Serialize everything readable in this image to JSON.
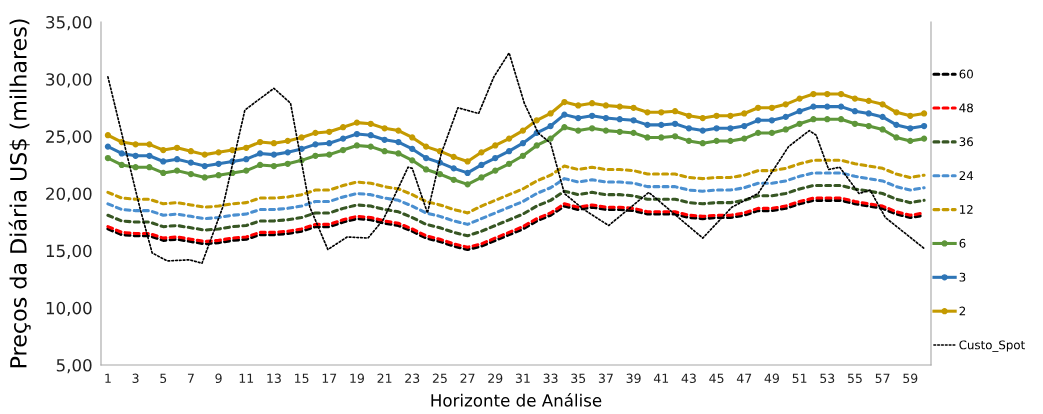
{
  "chart_data": {
    "type": "line",
    "xlabel": "Horizonte de Análise",
    "ylabel": "Preços da Diária US$ (milhares)",
    "x": [
      1,
      2,
      3,
      4,
      5,
      6,
      7,
      8,
      9,
      10,
      11,
      12,
      13,
      14,
      15,
      16,
      17,
      18,
      19,
      20,
      21,
      22,
      23,
      24,
      25,
      26,
      27,
      28,
      29,
      30,
      31,
      32,
      33,
      34,
      35,
      36,
      37,
      38,
      39,
      40,
      41,
      42,
      43,
      44,
      45,
      46,
      47,
      48,
      49,
      50,
      51,
      52,
      53,
      54,
      55,
      56,
      57,
      58,
      59,
      60
    ],
    "xlim": [
      0.5,
      60.5
    ],
    "xticks": [
      1,
      3,
      5,
      7,
      9,
      11,
      13,
      15,
      17,
      19,
      21,
      23,
      25,
      27,
      29,
      31,
      33,
      35,
      37,
      39,
      41,
      43,
      45,
      47,
      49,
      51,
      53,
      55,
      57,
      59
    ],
    "ylim": [
      5,
      35
    ],
    "yticks": [
      {
        "value": 5,
        "label": "5,00"
      },
      {
        "value": 10,
        "label": "10,00"
      },
      {
        "value": 15,
        "label": "15,00"
      },
      {
        "value": 20,
        "label": "20,00"
      },
      {
        "value": 25,
        "label": "25,00"
      },
      {
        "value": 30,
        "label": "30,00"
      },
      {
        "value": 35,
        "label": "35,00"
      }
    ],
    "grid": false,
    "legend": "right",
    "series": [
      {
        "name": "60",
        "color": "#000000",
        "line_style": "dashed",
        "marker": "none",
        "values": [
          16.9,
          16.4,
          16.3,
          16.3,
          15.9,
          16.0,
          15.8,
          15.6,
          15.7,
          15.9,
          16.0,
          16.4,
          16.4,
          16.5,
          16.7,
          17.1,
          17.1,
          17.5,
          17.8,
          17.7,
          17.4,
          17.2,
          16.7,
          16.1,
          15.8,
          15.4,
          15.1,
          15.4,
          15.9,
          16.4,
          16.9,
          17.6,
          18.1,
          18.9,
          18.6,
          18.8,
          18.6,
          18.6,
          18.5,
          18.2,
          18.2,
          18.2,
          17.9,
          17.8,
          17.9,
          17.9,
          18.1,
          18.5,
          18.5,
          18.7,
          19.1,
          19.4,
          19.4,
          19.4,
          19.1,
          18.9,
          18.7,
          18.2,
          17.9,
          18.1
        ]
      },
      {
        "name": "48",
        "color": "#ff0000",
        "line_style": "dashed",
        "marker": "none",
        "values": [
          17.1,
          16.6,
          16.5,
          16.5,
          16.1,
          16.2,
          16.0,
          15.8,
          15.9,
          16.1,
          16.2,
          16.6,
          16.6,
          16.7,
          16.9,
          17.3,
          17.3,
          17.7,
          18.0,
          17.9,
          17.6,
          17.4,
          16.9,
          16.3,
          16.0,
          15.6,
          15.3,
          15.6,
          16.1,
          16.6,
          17.1,
          17.8,
          18.3,
          19.1,
          18.8,
          19.0,
          18.8,
          18.8,
          18.7,
          18.4,
          18.4,
          18.4,
          18.1,
          18.0,
          18.1,
          18.1,
          18.3,
          18.7,
          18.7,
          18.9,
          19.3,
          19.6,
          19.6,
          19.6,
          19.3,
          19.1,
          18.9,
          18.4,
          18.1,
          18.3
        ]
      },
      {
        "name": "36",
        "color": "#375623",
        "line_style": "dashed",
        "marker": "none",
        "values": [
          18.1,
          17.6,
          17.5,
          17.5,
          17.1,
          17.2,
          17.0,
          16.8,
          16.9,
          17.1,
          17.2,
          17.6,
          17.6,
          17.7,
          17.9,
          18.3,
          18.3,
          18.7,
          19.0,
          18.9,
          18.6,
          18.4,
          17.9,
          17.3,
          17.0,
          16.6,
          16.3,
          16.7,
          17.2,
          17.7,
          18.2,
          18.9,
          19.4,
          20.2,
          19.9,
          20.1,
          19.9,
          19.9,
          19.8,
          19.5,
          19.5,
          19.5,
          19.2,
          19.1,
          19.2,
          19.2,
          19.4,
          19.8,
          19.8,
          20.0,
          20.4,
          20.7,
          20.7,
          20.7,
          20.4,
          20.2,
          20.0,
          19.5,
          19.2,
          19.4
        ]
      },
      {
        "name": "24",
        "color": "#4a8fd0",
        "line_style": "dashed",
        "marker": "none",
        "values": [
          19.1,
          18.6,
          18.5,
          18.5,
          18.1,
          18.2,
          18.0,
          17.8,
          17.9,
          18.1,
          18.2,
          18.6,
          18.6,
          18.7,
          18.9,
          19.3,
          19.3,
          19.7,
          20.0,
          19.9,
          19.6,
          19.4,
          18.9,
          18.3,
          18.0,
          17.6,
          17.3,
          17.8,
          18.3,
          18.8,
          19.3,
          20.0,
          20.5,
          21.3,
          21.0,
          21.2,
          21.0,
          21.0,
          20.9,
          20.6,
          20.6,
          20.6,
          20.3,
          20.2,
          20.3,
          20.3,
          20.5,
          20.9,
          20.9,
          21.1,
          21.5,
          21.8,
          21.8,
          21.8,
          21.5,
          21.3,
          21.1,
          20.6,
          20.3,
          20.5
        ]
      },
      {
        "name": "12",
        "color": "#c49a00",
        "line_style": "dashed",
        "marker": "none",
        "values": [
          20.1,
          19.6,
          19.5,
          19.5,
          19.1,
          19.2,
          19.0,
          18.8,
          18.9,
          19.1,
          19.2,
          19.6,
          19.6,
          19.7,
          19.9,
          20.3,
          20.3,
          20.7,
          21.0,
          20.9,
          20.6,
          20.4,
          19.9,
          19.3,
          19.0,
          18.6,
          18.3,
          18.9,
          19.4,
          19.9,
          20.4,
          21.1,
          21.6,
          22.4,
          22.1,
          22.3,
          22.1,
          22.1,
          22.0,
          21.7,
          21.7,
          21.7,
          21.4,
          21.3,
          21.4,
          21.4,
          21.6,
          22.0,
          22.0,
          22.2,
          22.6,
          22.9,
          22.9,
          22.9,
          22.6,
          22.4,
          22.2,
          21.7,
          21.4,
          21.6
        ]
      },
      {
        "name": "6",
        "color": "#5e963a",
        "line_style": "solid",
        "marker": "circle",
        "values": [
          23.1,
          22.5,
          22.3,
          22.3,
          21.8,
          22.0,
          21.7,
          21.4,
          21.6,
          21.8,
          22.0,
          22.5,
          22.4,
          22.6,
          22.9,
          23.3,
          23.4,
          23.8,
          24.2,
          24.1,
          23.7,
          23.5,
          22.9,
          22.1,
          21.7,
          21.2,
          20.8,
          21.4,
          22.0,
          22.6,
          23.3,
          24.2,
          24.8,
          25.8,
          25.5,
          25.7,
          25.5,
          25.4,
          25.3,
          24.9,
          24.9,
          25.0,
          24.6,
          24.4,
          24.6,
          24.6,
          24.8,
          25.3,
          25.3,
          25.6,
          26.1,
          26.5,
          26.5,
          26.5,
          26.1,
          25.9,
          25.6,
          24.9,
          24.6,
          24.8
        ]
      },
      {
        "name": "3",
        "color": "#2e75b6",
        "line_style": "solid",
        "marker": "circle",
        "values": [
          24.1,
          23.5,
          23.3,
          23.3,
          22.8,
          23.0,
          22.7,
          22.4,
          22.6,
          22.8,
          23.0,
          23.5,
          23.4,
          23.6,
          23.9,
          24.3,
          24.4,
          24.8,
          25.2,
          25.1,
          24.7,
          24.5,
          23.9,
          23.1,
          22.7,
          22.2,
          21.8,
          22.5,
          23.1,
          23.7,
          24.4,
          25.3,
          25.9,
          26.9,
          26.6,
          26.8,
          26.6,
          26.5,
          26.4,
          26.0,
          26.0,
          26.1,
          25.7,
          25.5,
          25.7,
          25.7,
          25.9,
          26.4,
          26.4,
          26.7,
          27.2,
          27.6,
          27.6,
          27.6,
          27.2,
          27.0,
          26.7,
          26.0,
          25.7,
          25.9
        ]
      },
      {
        "name": "2",
        "color": "#c49a00",
        "line_style": "solid",
        "marker": "circle",
        "values": [
          25.1,
          24.5,
          24.3,
          24.3,
          23.8,
          24.0,
          23.7,
          23.4,
          23.6,
          23.8,
          24.0,
          24.5,
          24.4,
          24.6,
          24.9,
          25.3,
          25.4,
          25.8,
          26.2,
          26.1,
          25.7,
          25.5,
          24.9,
          24.1,
          23.7,
          23.2,
          22.8,
          23.6,
          24.2,
          24.8,
          25.5,
          26.4,
          27.0,
          28.0,
          27.7,
          27.9,
          27.7,
          27.6,
          27.5,
          27.1,
          27.1,
          27.2,
          26.8,
          26.6,
          26.8,
          26.8,
          27.0,
          27.5,
          27.5,
          27.8,
          28.3,
          28.7,
          28.7,
          28.7,
          28.3,
          28.1,
          27.8,
          27.1,
          26.8,
          27.0
        ]
      },
      {
        "name": "Custo_Spot",
        "color": "#000000",
        "line_style": "dotted",
        "marker": "none",
        "x": [
          1,
          3.3,
          4.2,
          5.3,
          6.9,
          7.8,
          9.3,
          10.9,
          13.0,
          14.2,
          15.6,
          16.9,
          18.3,
          19.8,
          20.9,
          22.7,
          23.0,
          24.1,
          25.1,
          26.3,
          27.8,
          28.9,
          30.0,
          31.1,
          32.1,
          33.0,
          34.0,
          35.4,
          37.2,
          40.1,
          44.0,
          46.1,
          48.0,
          50.2,
          51.7,
          52.2,
          53.1,
          53.9,
          55.3,
          56.1,
          57.2,
          60
        ],
        "values": [
          30.2,
          18.8,
          14.8,
          14.1,
          14.2,
          13.9,
          18.8,
          27.3,
          29.2,
          27.9,
          18.8,
          15.1,
          16.2,
          16.1,
          17.7,
          22.3,
          22.2,
          18.3,
          23.5,
          27.5,
          27.0,
          30.2,
          32.3,
          27.9,
          25.3,
          24.4,
          20.0,
          18.6,
          17.2,
          20.1,
          16.1,
          18.8,
          20.0,
          24.1,
          25.5,
          25.1,
          22.1,
          22.3,
          20.0,
          20.3,
          17.9,
          15.2
        ]
      }
    ]
  }
}
